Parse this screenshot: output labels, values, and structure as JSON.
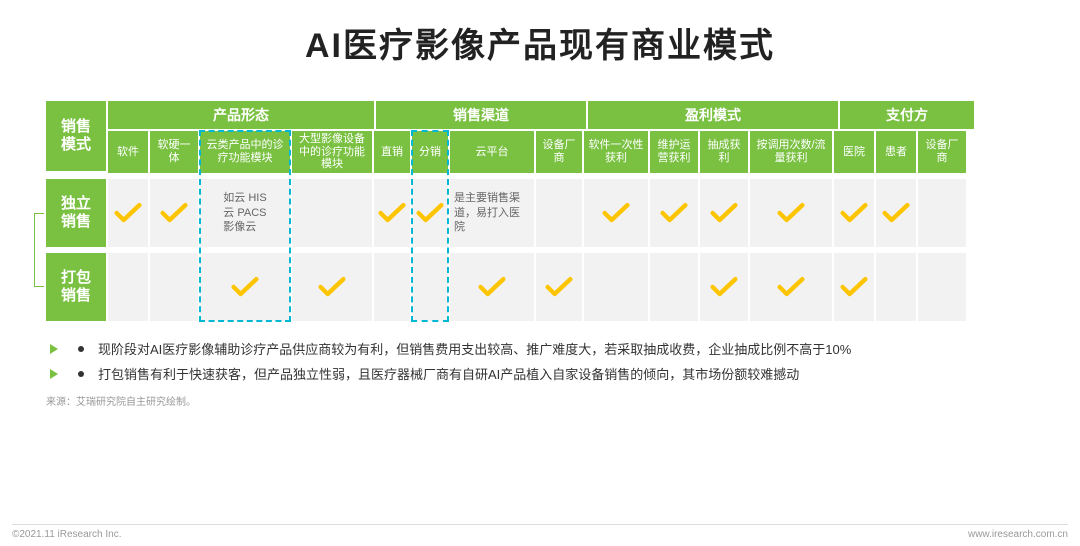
{
  "title": "AI医疗影像产品现有商业模式",
  "colors": {
    "green": "#7ac142",
    "yellow": "#fdc400",
    "cyan": "#00b8d4",
    "grey_bg": "#f2f2f2",
    "text": "#333333"
  },
  "row_header_title": "销售\n模式",
  "groups": [
    {
      "key": "form",
      "label": "产品形态"
    },
    {
      "key": "chan",
      "label": "销售渠道"
    },
    {
      "key": "profit",
      "label": "盈利模式"
    },
    {
      "key": "payer",
      "label": "支付方"
    }
  ],
  "columns": [
    {
      "key": "soft",
      "group": "form",
      "label": "软件"
    },
    {
      "key": "hw",
      "group": "form",
      "label": "软硬一体"
    },
    {
      "key": "cloud",
      "group": "form",
      "label": "云类产品中的诊疗功能模块"
    },
    {
      "key": "large",
      "group": "form",
      "label": "大型影像设备中的诊疗功能模块"
    },
    {
      "key": "direct",
      "group": "chan",
      "label": "直销"
    },
    {
      "key": "dist",
      "group": "chan",
      "label": "分销"
    },
    {
      "key": "cplat",
      "group": "chan",
      "label": "云平台"
    },
    {
      "key": "vendor",
      "group": "chan",
      "label": "设备厂商"
    },
    {
      "key": "once",
      "group": "profit",
      "label": "软件一次性获利"
    },
    {
      "key": "maint",
      "group": "profit",
      "label": "维护运营获利"
    },
    {
      "key": "comm",
      "group": "profit",
      "label": "抽成获利"
    },
    {
      "key": "usage",
      "group": "profit",
      "label": "按调用次数/流量获利"
    },
    {
      "key": "hosp",
      "group": "payer",
      "label": "医院"
    },
    {
      "key": "pat",
      "group": "payer",
      "label": "患者"
    },
    {
      "key": "devv",
      "group": "payer",
      "label": "设备厂商"
    }
  ],
  "rows": [
    {
      "key": "independent",
      "label": "独立\n销售",
      "cells": {
        "soft": {
          "check": true
        },
        "hw": {
          "check": true
        },
        "cloud": {
          "text": "如云 HIS\n云 PACS\n影像云"
        },
        "large": {},
        "direct": {
          "check": true
        },
        "dist": {
          "check": true
        },
        "cplat": {
          "text": "是主要销售渠道，易打入医院"
        },
        "vendor": {},
        "once": {
          "check": true
        },
        "maint": {
          "check": true
        },
        "comm": {
          "check": true
        },
        "usage": {
          "check": true
        },
        "hosp": {
          "check": true
        },
        "pat": {
          "check": true
        },
        "devv": {}
      }
    },
    {
      "key": "bundle",
      "label": "打包\n销售",
      "cells": {
        "soft": {},
        "hw": {},
        "cloud": {
          "check": true
        },
        "large": {
          "check": true
        },
        "direct": {},
        "dist": {},
        "cplat": {
          "check": true
        },
        "vendor": {
          "check": true
        },
        "once": {},
        "maint": {},
        "comm": {
          "check": true
        },
        "usage": {
          "check": true
        },
        "hosp": {
          "check": true
        },
        "pat": {},
        "devv": {}
      }
    }
  ],
  "highlight_columns": [
    "cloud",
    "dist"
  ],
  "bullets": [
    "现阶段对AI医疗影像辅助诊疗产品供应商较为有利，但销售费用支出较高、推广难度大，若采取抽成收费，企业抽成比例不高于10%",
    "打包销售有利于快速获客，但产品独立性弱，且医疗器械厂商有自研AI产品植入自家设备销售的倾向，其市场份额较难撼动"
  ],
  "source": "来源：艾瑞研究院自主研究绘制。",
  "footer_left": "©2021.11 iResearch Inc.",
  "footer_right": "www.iresearch.com.cn"
}
